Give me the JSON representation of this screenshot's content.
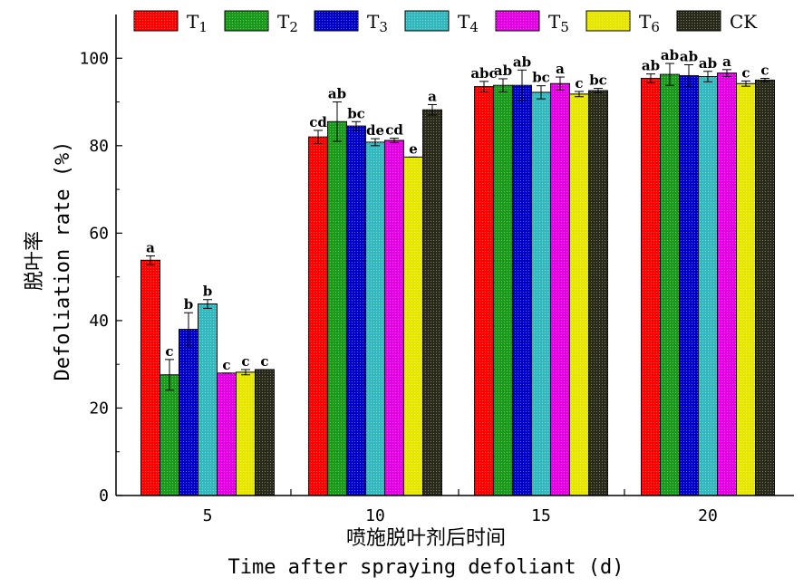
{
  "chart_data": {
    "type": "bar",
    "categories": [
      "5",
      "10",
      "15",
      "20"
    ],
    "xlabel_cn": "喷施脱叶剂后时间",
    "xlabel": "Time after spraying defoliant (d)",
    "ylabel_cn": "脱叶率",
    "ylabel": "Defoliation rate (%)",
    "ylim": [
      0,
      110
    ],
    "yticks": [
      0,
      20,
      40,
      60,
      80,
      100
    ],
    "legend_position": "top",
    "series": [
      {
        "name": "T1",
        "color": "#ff0000",
        "values": [
          53.8,
          82.0,
          93.5,
          95.4
        ],
        "errors": [
          1.0,
          1.5,
          1.2,
          1.0
        ],
        "letters": [
          "a",
          "cd",
          "abc",
          "ab"
        ]
      },
      {
        "name": "T2",
        "color": "#1a9a1a",
        "values": [
          27.6,
          85.5,
          93.8,
          96.3
        ],
        "errors": [
          3.5,
          4.5,
          1.5,
          2.5
        ],
        "letters": [
          "c",
          "ab",
          "ab",
          "ab"
        ]
      },
      {
        "name": "T3",
        "color": "#0000cc",
        "values": [
          38.0,
          84.5,
          93.8,
          96.0
        ],
        "errors": [
          3.8,
          1.0,
          3.5,
          2.5
        ],
        "letters": [
          "b",
          "bc",
          "ab",
          "ab"
        ]
      },
      {
        "name": "T4",
        "color": "#33b8bd",
        "values": [
          43.8,
          80.8,
          92.2,
          95.8
        ],
        "errors": [
          1.0,
          0.8,
          1.5,
          1.2
        ],
        "letters": [
          "b",
          "de",
          "bc",
          "ab"
        ]
      },
      {
        "name": "T5",
        "color": "#e600e6",
        "values": [
          28.0,
          81.2,
          94.2,
          96.6
        ],
        "errors": [
          0.0,
          0.5,
          1.5,
          0.8
        ],
        "letters": [
          "c",
          "cd",
          "a",
          "a"
        ]
      },
      {
        "name": "T6",
        "color": "#e6e600",
        "values": [
          28.2,
          77.4,
          91.8,
          94.2
        ],
        "errors": [
          0.6,
          0.0,
          0.6,
          0.6
        ],
        "letters": [
          "c",
          "e",
          "c",
          "c"
        ]
      },
      {
        "name": "CK",
        "color": "#2a2a1a",
        "values": [
          28.8,
          88.2,
          92.6,
          95.0
        ],
        "errors": [
          0.0,
          1.2,
          0.5,
          0.4
        ],
        "letters": [
          "c",
          "a",
          "bc",
          "c"
        ]
      }
    ]
  }
}
